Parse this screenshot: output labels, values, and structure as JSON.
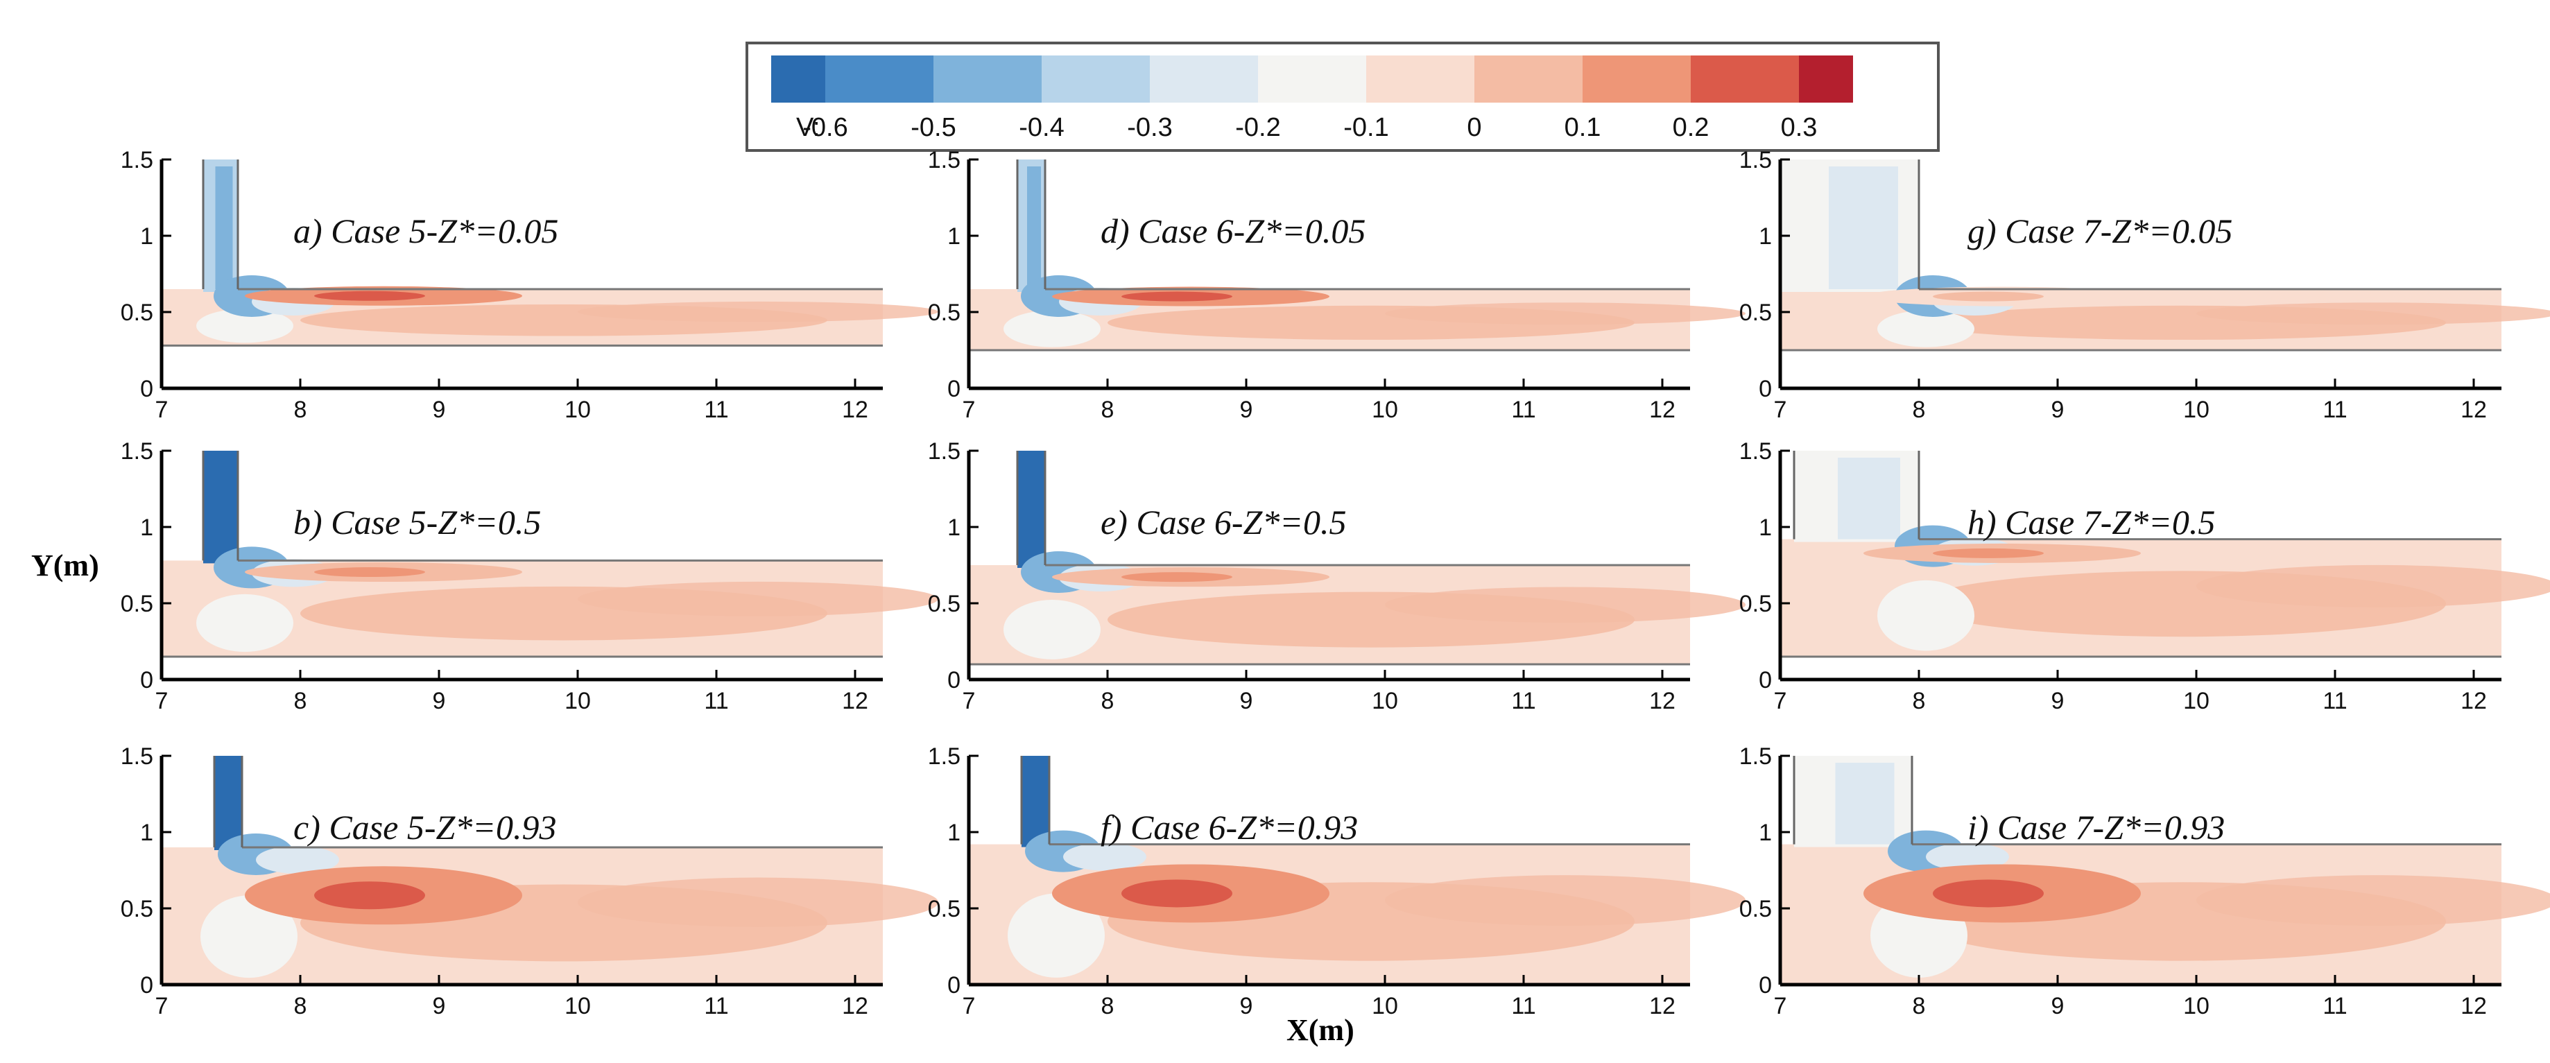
{
  "chart_data": {
    "type": "heatmap",
    "variable": "V",
    "colorbar": {
      "label": "V:",
      "ticks": [
        "-0.6",
        "-0.5",
        "-0.4",
        "-0.3",
        "-0.2",
        "-0.1",
        "0",
        "0.1",
        "0.2",
        "0.3"
      ],
      "bins": [
        {
          "lo": -0.65,
          "hi": -0.6,
          "color": "#2b6cb0"
        },
        {
          "lo": -0.6,
          "hi": -0.5,
          "color": "#4a8cc8"
        },
        {
          "lo": -0.5,
          "hi": -0.4,
          "color": "#7fb3db"
        },
        {
          "lo": -0.4,
          "hi": -0.3,
          "color": "#b7d4ea"
        },
        {
          "lo": -0.3,
          "hi": -0.2,
          "color": "#dde8f1"
        },
        {
          "lo": -0.2,
          "hi": -0.1,
          "color": "#f4f4f2"
        },
        {
          "lo": -0.1,
          "hi": 0,
          "color": "#f9ddd0"
        },
        {
          "lo": 0,
          "hi": 0.1,
          "color": "#f4bca4"
        },
        {
          "lo": 0.1,
          "hi": 0.2,
          "color": "#ee9677"
        },
        {
          "lo": 0.2,
          "hi": 0.3,
          "color": "#db5a4a"
        },
        {
          "lo": 0.3,
          "hi": 0.35,
          "color": "#b41f2e"
        }
      ]
    },
    "xlabel": "X(m)",
    "ylabel": "Y(m)",
    "xlim": [
      7,
      12.2
    ],
    "ylim": [
      0,
      1.5
    ],
    "xticks": [
      "7",
      "8",
      "9",
      "10",
      "11",
      "12"
    ],
    "yticks": [
      "0",
      "0.5",
      "1",
      "1.5"
    ],
    "panels": [
      {
        "id": "a",
        "title": "a) Case 5-Z*=0.05",
        "case": 5,
        "z": 0.05,
        "pipe": [
          7.3,
          7.55
        ],
        "water": [
          0.28,
          0.65
        ],
        "blob_v": 0.22
      },
      {
        "id": "b",
        "title": "b) Case 5-Z*=0.5",
        "case": 5,
        "z": 0.5,
        "pipe": [
          7.3,
          7.55
        ],
        "water": [
          0.15,
          0.78
        ],
        "blob_v": 0.12
      },
      {
        "id": "c",
        "title": "c) Case 5-Z*=0.93",
        "case": 5,
        "z": 0.93,
        "pipe": [
          7.38,
          7.58
        ],
        "water": [
          0,
          0.9
        ],
        "blob_v": 0.25
      },
      {
        "id": "d",
        "title": "d) Case 6-Z*=0.05",
        "case": 6,
        "z": 0.05,
        "pipe": [
          7.35,
          7.55
        ],
        "water": [
          0.25,
          0.65
        ],
        "blob_v": 0.22
      },
      {
        "id": "e",
        "title": "e) Case 6-Z*=0.5",
        "case": 6,
        "z": 0.5,
        "pipe": [
          7.35,
          7.55
        ],
        "water": [
          0.1,
          0.75
        ],
        "blob_v": 0.15
      },
      {
        "id": "f",
        "title": "f) Case 6-Z*=0.93",
        "case": 6,
        "z": 0.93,
        "pipe": [
          7.38,
          7.58
        ],
        "water": [
          0,
          0.92
        ],
        "blob_v": 0.25
      },
      {
        "id": "g",
        "title": "g) Case 7-Z*=0.05",
        "case": 7,
        "z": 0.05,
        "pipe": [
          7.0,
          8.0
        ],
        "water": [
          0.25,
          0.65
        ],
        "blob_v": 0.05
      },
      {
        "id": "h",
        "title": "h) Case 7-Z*=0.5",
        "case": 7,
        "z": 0.5,
        "pipe": [
          7.1,
          8.0
        ],
        "water": [
          0.15,
          0.92
        ],
        "blob_v": 0.12
      },
      {
        "id": "i",
        "title": "i) Case 7-Z*=0.93",
        "case": 7,
        "z": 0.93,
        "pipe": [
          7.1,
          7.95
        ],
        "water": [
          0,
          0.92
        ],
        "blob_v": 0.25
      }
    ]
  }
}
